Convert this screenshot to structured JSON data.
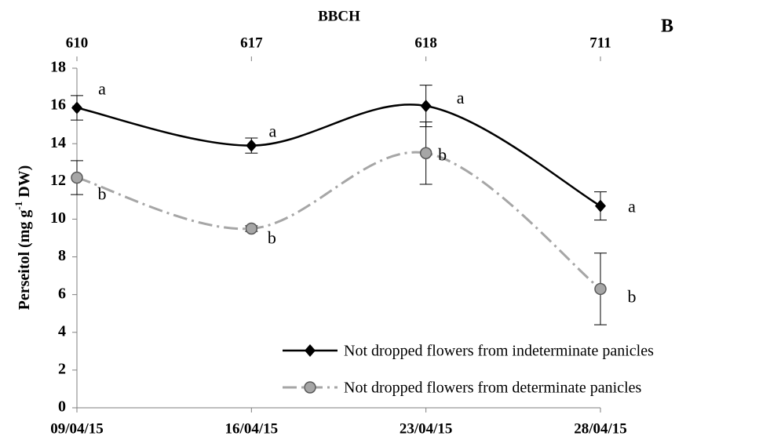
{
  "chart_data": {
    "type": "line",
    "top_axis_title": "BBCH",
    "top_categories": [
      "610",
      "617",
      "618",
      "711"
    ],
    "panel_label": "B",
    "y_label": {
      "main": "Perseitol (mg g",
      "sup": "-1",
      "end": " DW)"
    },
    "categories": [
      "09/04/15",
      "16/04/15",
      "23/04/15",
      "28/04/15"
    ],
    "ylim": [
      0,
      18
    ],
    "yticks": [
      0,
      2,
      4,
      6,
      8,
      10,
      12,
      14,
      16,
      18
    ],
    "legend": "bottom-right",
    "series": [
      {
        "name": "Not dropped flowers from indeterminate panicles",
        "color": "#000000",
        "values": [
          15.9,
          13.9,
          16.0,
          10.7
        ],
        "errors": [
          0.65,
          0.4,
          1.1,
          0.75
        ],
        "point_labels": [
          "a",
          "a",
          "a",
          "a"
        ]
      },
      {
        "name": "Not dropped flowers from determinate panicles",
        "color": "#a6a6a6",
        "values": [
          12.2,
          9.5,
          13.5,
          6.3
        ],
        "errors": [
          0.9,
          0.15,
          1.65,
          1.9
        ],
        "point_labels": [
          "b",
          "b",
          "b",
          "b"
        ]
      }
    ]
  }
}
